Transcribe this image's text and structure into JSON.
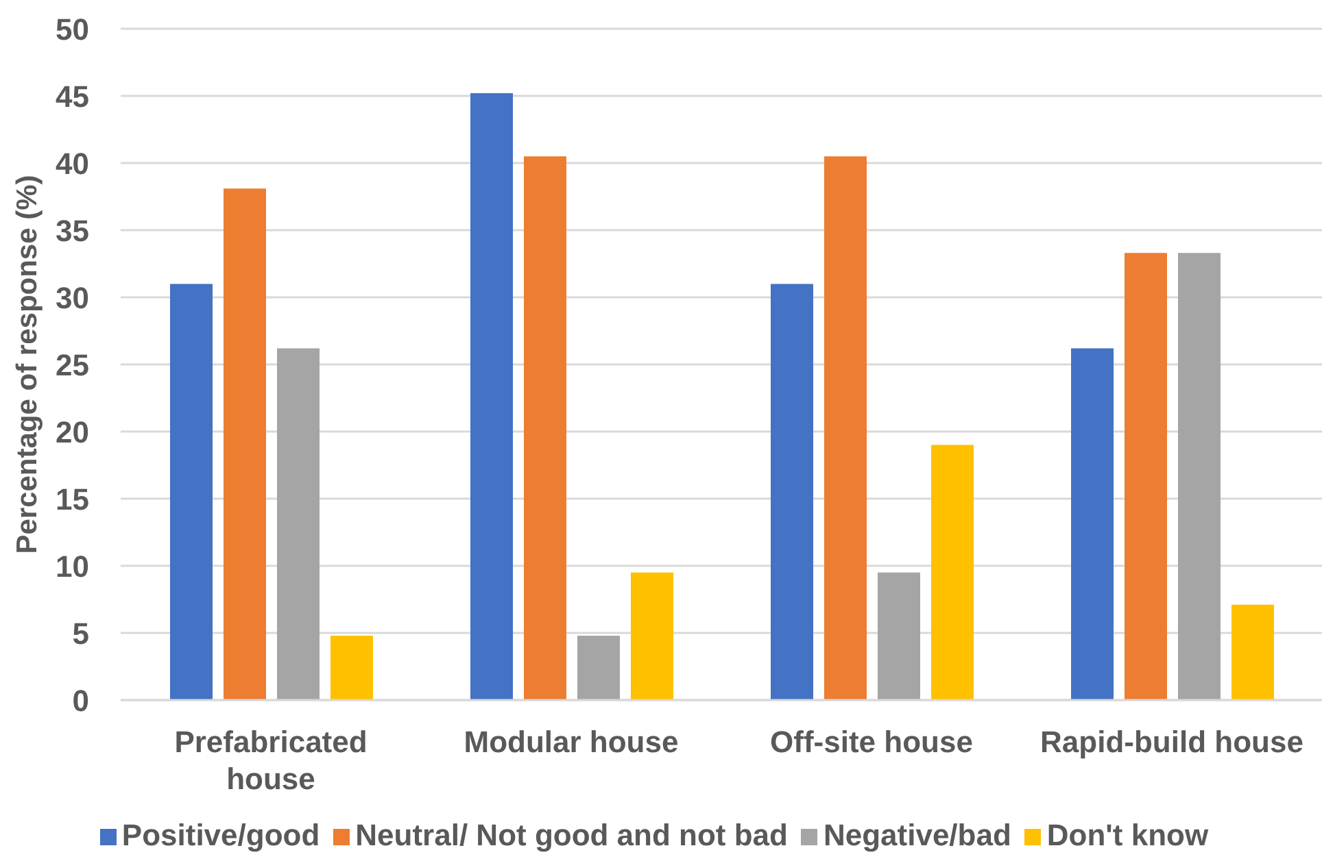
{
  "chart_data": {
    "type": "bar",
    "ylabel": "Percentage of response (%)",
    "categories": [
      "Prefabricated house",
      "Modular house",
      "Off-site house",
      "Rapid-build house"
    ],
    "series": [
      {
        "name": "Positive/good",
        "color": "#4472c4",
        "values": [
          31,
          45.2,
          31,
          26.2
        ]
      },
      {
        "name": "Neutral/ Not good and not bad",
        "color": "#ed7d31",
        "values": [
          38.1,
          40.5,
          40.5,
          33.3
        ]
      },
      {
        "name": "Negative/bad",
        "color": "#a5a5a5",
        "values": [
          26.2,
          4.8,
          9.5,
          33.3
        ]
      },
      {
        "name": "Don't know",
        "color": "#ffc000",
        "values": [
          4.8,
          9.5,
          19,
          7.1
        ]
      }
    ],
    "ylim": [
      0,
      50
    ],
    "yticks": [
      0,
      5,
      10,
      15,
      20,
      25,
      30,
      35,
      40,
      45,
      50
    ],
    "grid": "y",
    "legend": "bottom"
  }
}
